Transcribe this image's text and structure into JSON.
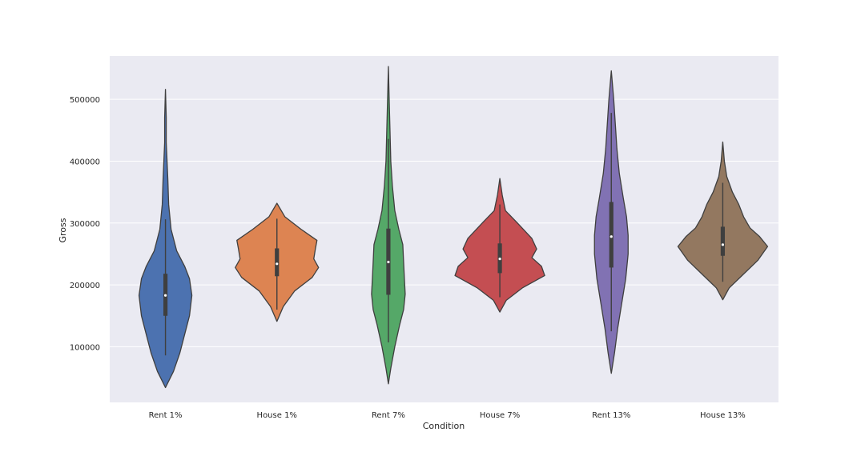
{
  "chart_data": {
    "type": "violin",
    "title": "",
    "xlabel": "Condition",
    "ylabel": "Gross",
    "ylim": [
      10000,
      570000
    ],
    "yticks": [
      100000,
      200000,
      300000,
      400000,
      500000
    ],
    "grid": true,
    "categories": [
      "Rent 1%",
      "House 1%",
      "Rent 7%",
      "House 7%",
      "Rent 13%",
      "House 13%"
    ],
    "colors": [
      "#4c72b0",
      "#dd8452",
      "#55a868",
      "#c44e52",
      "#8172b3",
      "#937860"
    ],
    "series": [
      {
        "category": "Rent 1%",
        "min": 86000,
        "q1": 150000,
        "median": 183000,
        "q3": 218000,
        "max": 306000,
        "kde_low": 34000,
        "kde_high": 516000,
        "density": [
          [
            34000,
            0
          ],
          [
            60000,
            10
          ],
          [
            90000,
            18
          ],
          [
            120000,
            24
          ],
          [
            150000,
            30
          ],
          [
            183000,
            33
          ],
          [
            210000,
            30
          ],
          [
            230000,
            24
          ],
          [
            255000,
            14
          ],
          [
            290000,
            7
          ],
          [
            330000,
            4
          ],
          [
            370000,
            3
          ],
          [
            400000,
            2
          ],
          [
            430000,
            1
          ],
          [
            470000,
            1
          ],
          [
            516000,
            0
          ]
        ]
      },
      {
        "category": "House 1%",
        "min": 160000,
        "q1": 214000,
        "median": 234000,
        "q3": 259000,
        "max": 307000,
        "kde_low": 141000,
        "kde_high": 332000,
        "density": [
          [
            141000,
            0
          ],
          [
            165000,
            8
          ],
          [
            190000,
            22
          ],
          [
            212000,
            44
          ],
          [
            228000,
            52
          ],
          [
            242000,
            46
          ],
          [
            258000,
            48
          ],
          [
            272000,
            50
          ],
          [
            290000,
            30
          ],
          [
            310000,
            10
          ],
          [
            332000,
            0
          ]
        ]
      },
      {
        "category": "Rent 7%",
        "min": 107000,
        "q1": 184000,
        "median": 237000,
        "q3": 291000,
        "max": 436000,
        "kde_low": 40000,
        "kde_high": 553000,
        "density": [
          [
            40000,
            0
          ],
          [
            65000,
            3
          ],
          [
            100000,
            8
          ],
          [
            135000,
            14
          ],
          [
            160000,
            19
          ],
          [
            185000,
            21
          ],
          [
            210000,
            20
          ],
          [
            237000,
            19
          ],
          [
            265000,
            18
          ],
          [
            290000,
            13
          ],
          [
            320000,
            8
          ],
          [
            360000,
            5
          ],
          [
            400000,
            3
          ],
          [
            450000,
            2
          ],
          [
            500000,
            1
          ],
          [
            553000,
            0
          ]
        ]
      },
      {
        "category": "House 7%",
        "min": 180000,
        "q1": 219000,
        "median": 242000,
        "q3": 267000,
        "max": 330000,
        "kde_low": 156000,
        "kde_high": 372000,
        "density": [
          [
            156000,
            0
          ],
          [
            175000,
            8
          ],
          [
            195000,
            28
          ],
          [
            215000,
            56
          ],
          [
            230000,
            52
          ],
          [
            244000,
            40
          ],
          [
            258000,
            46
          ],
          [
            275000,
            40
          ],
          [
            300000,
            22
          ],
          [
            320000,
            7
          ],
          [
            345000,
            3
          ],
          [
            372000,
            0
          ]
        ]
      },
      {
        "category": "Rent 13%",
        "min": 125000,
        "q1": 228000,
        "median": 278000,
        "q3": 334000,
        "max": 478000,
        "kde_low": 57000,
        "kde_high": 546000,
        "density": [
          [
            57000,
            0
          ],
          [
            90000,
            4
          ],
          [
            130000,
            8
          ],
          [
            170000,
            13
          ],
          [
            210000,
            18
          ],
          [
            250000,
            21
          ],
          [
            280000,
            21
          ],
          [
            310000,
            19
          ],
          [
            340000,
            15
          ],
          [
            380000,
            10
          ],
          [
            420000,
            7
          ],
          [
            460000,
            5
          ],
          [
            500000,
            3
          ],
          [
            546000,
            0
          ]
        ]
      },
      {
        "category": "House 13%",
        "min": 205000,
        "q1": 247000,
        "median": 265000,
        "q3": 294000,
        "max": 365000,
        "kde_low": 176000,
        "kde_high": 431000,
        "density": [
          [
            176000,
            0
          ],
          [
            195000,
            8
          ],
          [
            215000,
            24
          ],
          [
            240000,
            44
          ],
          [
            262000,
            56
          ],
          [
            278000,
            46
          ],
          [
            292000,
            34
          ],
          [
            310000,
            26
          ],
          [
            330000,
            20
          ],
          [
            350000,
            12
          ],
          [
            375000,
            5
          ],
          [
            400000,
            2
          ],
          [
            431000,
            0
          ]
        ]
      }
    ]
  }
}
